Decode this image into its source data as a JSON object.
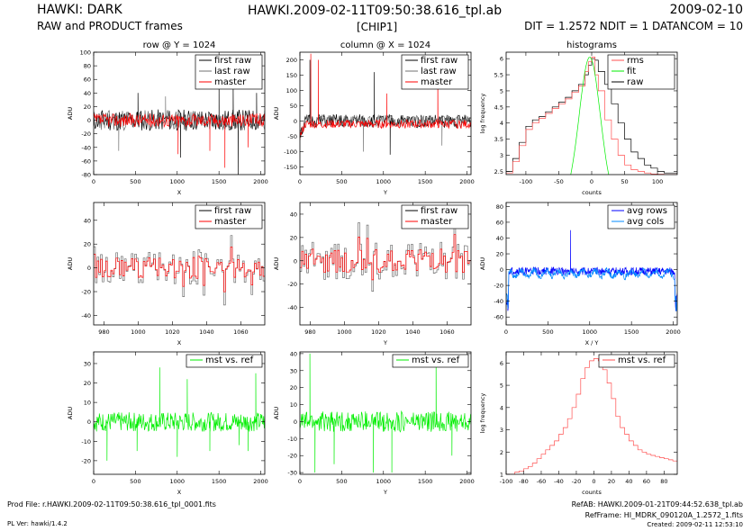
{
  "header": {
    "left_title": "HAWKI: DARK",
    "left_subtitle": "RAW and PRODUCT frames",
    "center_title": "HAWKI.2009-02-11T09:50:38.616_tpl.ab",
    "center_subtitle": "[CHIP1]",
    "right_title": "2009-02-10",
    "right_subtitle": "DIT = 1.2572 NDIT = 1 DATANCOM = 10"
  },
  "footer": {
    "prod_file": "Prod File: r.HAWKI.2009-02-11T09:50:38.616_tpl_0001.fits",
    "pl_ver": "PL Ver: hawki/1.4.2",
    "ref_ab": "RefAB: HAWKI.2009-01-21T09:44:52.638_tpl.ab",
    "ref_frame": "RefFrame: HI_MDRK_090120A_1.2572_1.fits",
    "created": "Created: 2009-02-11 12:53:10"
  },
  "colors": {
    "black": "#000000",
    "gray": "#707070",
    "red": "#ff0000",
    "green": "#00ee00",
    "blue": "#0000ff",
    "lightblue": "#0088ff",
    "pink": "#ff5050"
  },
  "chart_data": [
    {
      "id": "p1",
      "type": "line",
      "title": "row @ Y = 1024",
      "xlabel": "X",
      "ylabel": "ADU",
      "xlim": [
        0,
        2048
      ],
      "ylim": [
        -80,
        100
      ],
      "xticks": [
        0,
        500,
        1000,
        1500,
        2000
      ],
      "yticks": [
        -80,
        -60,
        -40,
        -20,
        0,
        20,
        40,
        60,
        80,
        100
      ],
      "legend": {
        "position": "top-right",
        "entries": [
          {
            "name": "first raw",
            "color": "black"
          },
          {
            "name": "last raw",
            "color": "gray"
          },
          {
            "name": "master",
            "color": "red"
          }
        ]
      },
      "series": [
        {
          "name": "first raw",
          "color": "black",
          "kind": "noise",
          "n": 220,
          "mean": 0,
          "amp": 16,
          "seed": 11,
          "spikes": [
            [
              530,
              40
            ],
            [
              1040,
              -55
            ],
            [
              1500,
              60
            ],
            [
              1670,
              50
            ],
            [
              1730,
              -80
            ],
            [
              1950,
              40
            ]
          ]
        },
        {
          "name": "last raw",
          "color": "gray",
          "kind": "noise",
          "n": 220,
          "mean": 0,
          "amp": 15,
          "seed": 23,
          "spikes": [
            [
              300,
              -45
            ],
            [
              860,
              35
            ]
          ]
        },
        {
          "name": "master",
          "color": "red",
          "kind": "noise",
          "n": 260,
          "mean": 0,
          "amp": 10,
          "seed": 37,
          "spikes": [
            [
              1010,
              -50
            ],
            [
              1390,
              -45
            ],
            [
              1570,
              -70
            ],
            [
              1850,
              -40
            ]
          ]
        }
      ]
    },
    {
      "id": "p2",
      "type": "line",
      "title": "column @ X = 1024",
      "xlabel": "Y",
      "ylabel": "ADU",
      "xlim": [
        0,
        2048
      ],
      "ylim": [
        -175,
        225
      ],
      "xticks": [
        0,
        500,
        1000,
        1500,
        2000
      ],
      "yticks": [
        -150,
        -100,
        -50,
        0,
        50,
        100,
        150,
        200
      ],
      "legend": {
        "position": "top-right",
        "entries": [
          {
            "name": "first raw",
            "color": "black"
          },
          {
            "name": "last raw",
            "color": "gray"
          },
          {
            "name": "master",
            "color": "red"
          }
        ]
      },
      "series": [
        {
          "name": "first raw",
          "color": "black",
          "kind": "noise",
          "n": 220,
          "mean": 0,
          "amp": 22,
          "seed": 51,
          "edge": true,
          "spikes": [
            [
              120,
              200
            ],
            [
              890,
              160
            ],
            [
              1080,
              -110
            ]
          ]
        },
        {
          "name": "last raw",
          "color": "gray",
          "kind": "noise",
          "n": 220,
          "mean": 0,
          "amp": 20,
          "seed": 63,
          "edge": true,
          "spikes": [
            [
              760,
              -100
            ],
            [
              1700,
              -80
            ]
          ]
        },
        {
          "name": "master",
          "color": "red",
          "kind": "noise",
          "n": 260,
          "mean": -10,
          "amp": 14,
          "seed": 77,
          "edge": true,
          "spikes": [
            [
              130,
              220
            ],
            [
              220,
              200
            ],
            [
              1040,
              90
            ],
            [
              1650,
              200
            ]
          ]
        }
      ]
    },
    {
      "id": "p3",
      "type": "line",
      "title": "histograms",
      "xlabel": "counts",
      "ylabel": "log frequency",
      "xlim": [
        -130,
        130
      ],
      "ylim": [
        2.4,
        6.2
      ],
      "xticks": [
        -100,
        -50,
        0,
        50,
        100
      ],
      "yticks": [
        2.5,
        3,
        3.5,
        4,
        4.5,
        5,
        5.5,
        6
      ],
      "legend": {
        "position": "top-right",
        "entries": [
          {
            "name": "rms",
            "color": "pink"
          },
          {
            "name": "fit",
            "color": "green"
          },
          {
            "name": "raw",
            "color": "black"
          }
        ]
      },
      "series": [
        {
          "name": "raw",
          "color": "black",
          "kind": "step",
          "x": [
            -130,
            -120,
            -110,
            -100,
            -90,
            -80,
            -70,
            -60,
            -50,
            -40,
            -30,
            -20,
            -10,
            -5,
            0,
            5,
            10,
            20,
            30,
            40,
            50,
            60,
            70,
            80,
            90,
            100,
            110,
            120,
            130
          ],
          "y": [
            2.5,
            2.9,
            3.4,
            3.9,
            4.1,
            4.2,
            4.35,
            4.5,
            4.65,
            4.8,
            5.0,
            5.2,
            5.5,
            5.8,
            6.0,
            5.95,
            5.6,
            5.2,
            4.6,
            4.0,
            3.5,
            3.1,
            2.9,
            2.7,
            2.6,
            2.5,
            2.45,
            2.45,
            2.42
          ]
        },
        {
          "name": "rms",
          "color": "pink",
          "kind": "step",
          "x": [
            -130,
            -120,
            -110,
            -100,
            -90,
            -80,
            -70,
            -60,
            -50,
            -40,
            -30,
            -20,
            -10,
            -5,
            0,
            5,
            10,
            20,
            30,
            40,
            50,
            60,
            70,
            80,
            90,
            100,
            110,
            120,
            130
          ],
          "y": [
            2.45,
            2.8,
            3.3,
            3.8,
            4.0,
            4.15,
            4.3,
            4.45,
            4.6,
            4.75,
            4.95,
            5.15,
            5.6,
            5.9,
            6.05,
            5.5,
            5.0,
            4.1,
            3.5,
            3.0,
            2.7,
            2.55,
            2.5,
            2.45,
            2.42,
            2.41,
            2.4,
            2.4,
            2.4
          ]
        },
        {
          "name": "fit",
          "color": "green",
          "kind": "gauss",
          "mu": -3,
          "sigma": 16,
          "peak": 6.05,
          "base": 1.5
        }
      ]
    },
    {
      "id": "p4",
      "type": "line",
      "title": "",
      "xlabel": "X",
      "ylabel": "ADU",
      "xlim": [
        974,
        1074
      ],
      "ylim": [
        -48,
        55
      ],
      "xticks": [
        980,
        1000,
        1020,
        1040,
        1060
      ],
      "yticks": [
        -40,
        -20,
        0,
        20,
        40
      ],
      "legend": {
        "position": "top-right",
        "entries": [
          {
            "name": "first raw",
            "color": "black"
          },
          {
            "name": "master",
            "color": "red"
          }
        ]
      },
      "series": [
        {
          "name": "first raw",
          "color": "gray",
          "kind": "stepnoise",
          "n": 100,
          "mean": 0,
          "amp": 14,
          "seed": 91
        },
        {
          "name": "master",
          "color": "red",
          "kind": "stepnoise",
          "n": 100,
          "mean": 0,
          "amp": 9,
          "seed": 91
        }
      ]
    },
    {
      "id": "p5",
      "type": "line",
      "title": "",
      "xlabel": "Y",
      "ylabel": "ADU",
      "xlim": [
        974,
        1074
      ],
      "ylim": [
        -55,
        50
      ],
      "xticks": [
        980,
        1000,
        1020,
        1040,
        1060
      ],
      "yticks": [
        -40,
        -20,
        0,
        20,
        40
      ],
      "legend": {
        "position": "top-right",
        "entries": [
          {
            "name": "first raw",
            "color": "black"
          },
          {
            "name": "master",
            "color": "red"
          }
        ]
      },
      "series": [
        {
          "name": "first raw",
          "color": "gray",
          "kind": "stepnoise",
          "n": 100,
          "mean": 0,
          "amp": 16,
          "seed": 131
        },
        {
          "name": "master",
          "color": "red",
          "kind": "stepnoise",
          "n": 100,
          "mean": 0,
          "amp": 10,
          "seed": 131
        }
      ]
    },
    {
      "id": "p6",
      "type": "line",
      "title": "",
      "xlabel": "X / Y",
      "ylabel": "ADU",
      "xlim": [
        0,
        2048
      ],
      "ylim": [
        -70,
        85
      ],
      "xticks": [
        0,
        500,
        1000,
        1500,
        2000
      ],
      "yticks": [
        -60,
        -40,
        -20,
        0,
        20,
        40,
        60,
        80
      ],
      "legend": {
        "position": "top-right",
        "entries": [
          {
            "name": "avg rows",
            "color": "blue"
          },
          {
            "name": "avg cols",
            "color": "lightblue"
          }
        ]
      },
      "series": [
        {
          "name": "avg rows",
          "color": "blue",
          "kind": "noise",
          "n": 400,
          "mean": -2,
          "amp": 5,
          "seed": 171,
          "edgeDrop": true,
          "spikes": [
            [
              770,
              50
            ]
          ]
        },
        {
          "name": "avg cols",
          "color": "lightblue",
          "kind": "noise",
          "n": 400,
          "mean": -5,
          "amp": 4,
          "seed": 181,
          "edgeDrop": true,
          "wave": true
        }
      ]
    },
    {
      "id": "p7",
      "type": "line",
      "title": "",
      "xlabel": "X",
      "ylabel": "ADU",
      "xlim": [
        0,
        2048
      ],
      "ylim": [
        -27,
        36
      ],
      "xticks": [
        0,
        500,
        1000,
        1500,
        2000
      ],
      "yticks": [
        -20,
        -10,
        0,
        10,
        20,
        30
      ],
      "legend": {
        "position": "top-right",
        "entries": [
          {
            "name": "mst vs. ref",
            "color": "green"
          }
        ]
      },
      "series": [
        {
          "name": "mst vs. ref",
          "color": "green",
          "kind": "noise",
          "n": 300,
          "mean": 0,
          "amp": 5,
          "seed": 211,
          "spikes": [
            [
              160,
              -20
            ],
            [
              520,
              -15
            ],
            [
              790,
              28
            ],
            [
              1000,
              -18
            ],
            [
              1120,
              22
            ],
            [
              1390,
              -15
            ],
            [
              1740,
              -12
            ],
            [
              1850,
              -15
            ],
            [
              1940,
              25
            ]
          ]
        }
      ]
    },
    {
      "id": "p8",
      "type": "line",
      "title": "",
      "xlabel": "Y",
      "ylabel": "ADU",
      "xlim": [
        0,
        2048
      ],
      "ylim": [
        -31,
        41
      ],
      "xticks": [
        0,
        500,
        1000,
        1500,
        2000
      ],
      "yticks": [
        -30,
        -20,
        -10,
        0,
        10,
        20,
        30,
        40
      ],
      "legend": {
        "position": "top-right",
        "entries": [
          {
            "name": "mst vs. ref",
            "color": "green"
          }
        ]
      },
      "series": [
        {
          "name": "mst vs. ref",
          "color": "green",
          "kind": "noise",
          "n": 300,
          "mean": 0,
          "amp": 6,
          "seed": 241,
          "spikes": [
            [
              120,
              40
            ],
            [
              180,
              -30
            ],
            [
              410,
              -25
            ],
            [
              880,
              -30
            ],
            [
              1100,
              -30
            ],
            [
              1630,
              35
            ],
            [
              1820,
              -20
            ]
          ]
        }
      ]
    },
    {
      "id": "p9",
      "type": "line",
      "title": "",
      "xlabel": "counts",
      "ylabel": "log frequency",
      "xlim": [
        -100,
        95
      ],
      "ylim": [
        1,
        6.5
      ],
      "xticks": [
        -100,
        -80,
        -60,
        -40,
        -20,
        0,
        20,
        40,
        60,
        80
      ],
      "yticks": [
        1,
        2,
        3,
        4,
        5,
        6
      ],
      "legend": {
        "position": "top-right",
        "entries": [
          {
            "name": "mst vs. ref",
            "color": "pink"
          }
        ]
      },
      "series": [
        {
          "name": "mst vs. ref",
          "color": "pink",
          "kind": "step",
          "x": [
            -100,
            -90,
            -85,
            -80,
            -75,
            -70,
            -65,
            -60,
            -55,
            -50,
            -45,
            -40,
            -35,
            -30,
            -25,
            -20,
            -15,
            -10,
            -5,
            0,
            5,
            10,
            15,
            20,
            25,
            30,
            35,
            40,
            45,
            50,
            55,
            60,
            65,
            70,
            75,
            80,
            85,
            90,
            95
          ],
          "y": [
            1.0,
            1.1,
            1.15,
            1.25,
            1.35,
            1.5,
            1.7,
            1.9,
            2.1,
            2.3,
            2.5,
            2.8,
            3.1,
            3.5,
            4.0,
            4.6,
            5.3,
            5.8,
            6.1,
            6.2,
            6.1,
            5.7,
            5.1,
            4.4,
            3.6,
            3.1,
            2.8,
            2.5,
            2.3,
            2.1,
            2.0,
            1.9,
            1.85,
            1.8,
            1.75,
            1.7,
            1.65,
            1.6,
            1.55
          ]
        }
      ]
    }
  ]
}
